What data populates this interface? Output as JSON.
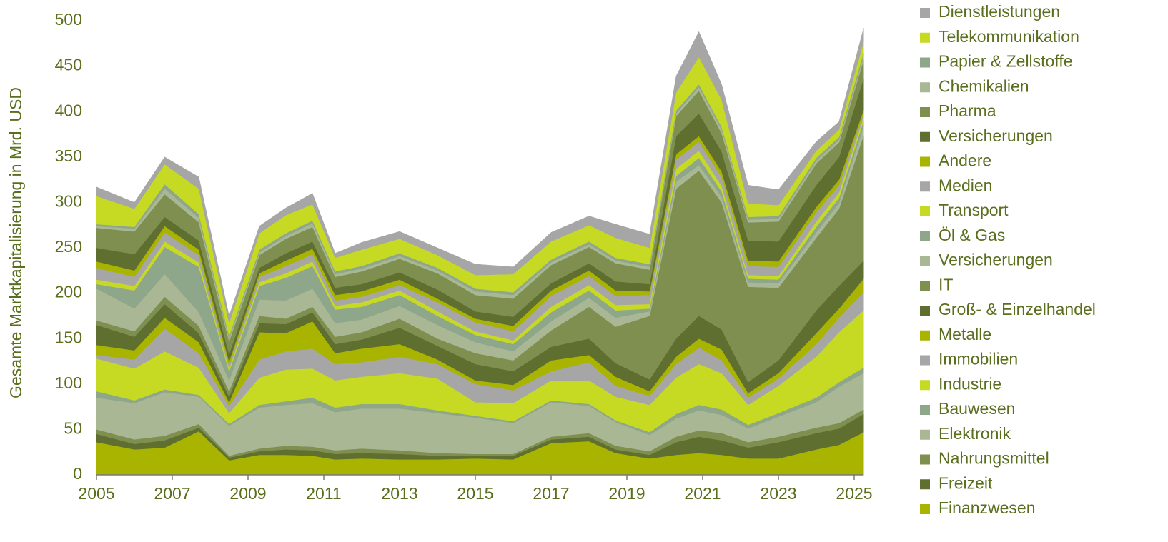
{
  "chart_data": {
    "type": "stacked-area",
    "y_label": "Gesamte Marktkapitalisierung in Mrd. USD",
    "x": [
      2005,
      2006,
      2006.8,
      2007.7,
      2008.5,
      2009.3,
      2010,
      2010.7,
      2011.3,
      2012,
      2013,
      2014,
      2015,
      2016,
      2017,
      2018,
      2018.7,
      2019.6,
      2020.3,
      2020.9,
      2021.5,
      2022.2,
      2023,
      2024,
      2024.6,
      2025.25
    ],
    "xlim": [
      2005,
      2025.25
    ],
    "xticks": [
      2005,
      2007,
      2009,
      2011,
      2013,
      2015,
      2017,
      2019,
      2021,
      2023,
      2025
    ],
    "ylim": [
      0,
      500
    ],
    "yticks": [
      0,
      50,
      100,
      150,
      200,
      250,
      300,
      350,
      400,
      450,
      500
    ],
    "series": [
      {
        "name": "Finanzwesen",
        "color": "#a8b400",
        "values": [
          36,
          28,
          30,
          48,
          16,
          22,
          22,
          21,
          17,
          18,
          17,
          17,
          18,
          17,
          35,
          37,
          24,
          18,
          22,
          24,
          22,
          18,
          18,
          28,
          33,
          47
        ]
      },
      {
        "name": "Freizeit",
        "color": "#5f6f2f",
        "values": [
          9,
          6,
          8,
          4,
          3,
          4,
          6,
          6,
          6,
          6,
          6,
          4,
          3,
          4,
          4,
          5,
          4,
          4,
          14,
          18,
          16,
          12,
          18,
          18,
          18,
          20
        ]
      },
      {
        "name": "Nahrungsmittel",
        "color": "#7f8f4f",
        "values": [
          5,
          5,
          5,
          4,
          2,
          3,
          4,
          4,
          4,
          5,
          4,
          3,
          2,
          2,
          3,
          4,
          4,
          4,
          6,
          7,
          8,
          6,
          6,
          6,
          6,
          5
        ]
      },
      {
        "name": "Elektronik",
        "color": "#a9b795",
        "values": [
          35,
          40,
          48,
          30,
          33,
          45,
          45,
          48,
          42,
          44,
          46,
          44,
          40,
          34,
          38,
          30,
          26,
          18,
          20,
          22,
          20,
          15,
          22,
          28,
          40,
          40
        ]
      },
      {
        "name": "Bauwesen",
        "color": "#8ea68a",
        "values": [
          7,
          3,
          3,
          2,
          2,
          3,
          4,
          6,
          5,
          5,
          5,
          3,
          2,
          2,
          2,
          2,
          2,
          3,
          5,
          6,
          6,
          4,
          4,
          5,
          5,
          6
        ]
      },
      {
        "name": "Industrie",
        "color": "#c6d923",
        "values": [
          36,
          35,
          42,
          30,
          12,
          30,
          35,
          32,
          30,
          30,
          34,
          35,
          15,
          20,
          22,
          26,
          26,
          30,
          40,
          45,
          40,
          22,
          30,
          45,
          55,
          63
        ]
      },
      {
        "name": "Immobilien",
        "color": "#a6a6a6",
        "values": [
          4,
          10,
          25,
          16,
          8,
          20,
          20,
          22,
          18,
          16,
          18,
          16,
          20,
          14,
          10,
          20,
          12,
          10,
          15,
          18,
          14,
          8,
          8,
          14,
          16,
          20
        ]
      },
      {
        "name": "Metalle",
        "color": "#a8b400",
        "values": [
          11,
          10,
          12,
          12,
          4,
          30,
          20,
          30,
          12,
          15,
          14,
          5,
          4,
          6,
          12,
          8,
          10,
          5,
          8,
          10,
          12,
          5,
          6,
          12,
          10,
          15
        ]
      },
      {
        "name": "Groß- & Einzelhandel",
        "color": "#5f6f2f",
        "values": [
          22,
          15,
          15,
          10,
          6,
          10,
          10,
          10,
          10,
          10,
          18,
          15,
          18,
          15,
          15,
          18,
          15,
          13,
          20,
          25,
          22,
          12,
          14,
          25,
          25,
          20
        ]
      },
      {
        "name": "IT",
        "color": "#7f8f4f",
        "values": [
          5,
          6,
          8,
          8,
          6,
          8,
          6,
          6,
          8,
          8,
          10,
          8,
          12,
          12,
          18,
          35,
          40,
          70,
          165,
          160,
          140,
          105,
          80,
          80,
          85,
          138
        ]
      },
      {
        "name": "Versicherungen",
        "color": "#a9b795",
        "values": [
          35,
          25,
          25,
          15,
          12,
          18,
          20,
          20,
          15,
          14,
          14,
          15,
          12,
          10,
          10,
          10,
          10,
          5,
          8,
          6,
          6,
          5,
          5,
          6,
          6,
          10
        ]
      },
      {
        "name": "Öl & Gas",
        "color": "#8ea68a",
        "values": [
          5,
          20,
          30,
          50,
          10,
          15,
          25,
          25,
          15,
          14,
          12,
          10,
          8,
          8,
          10,
          8,
          8,
          3,
          6,
          8,
          6,
          4,
          4,
          6,
          6,
          6
        ]
      },
      {
        "name": "Transport",
        "color": "#c6d923",
        "values": [
          5,
          5,
          6,
          5,
          3,
          4,
          5,
          5,
          4,
          5,
          5,
          5,
          4,
          4,
          6,
          6,
          6,
          5,
          8,
          8,
          6,
          4,
          4,
          6,
          6,
          4
        ]
      },
      {
        "name": "Medien",
        "color": "#a6a6a6",
        "values": [
          13,
          10,
          10,
          8,
          4,
          6,
          8,
          8,
          6,
          6,
          6,
          10,
          10,
          10,
          12,
          10,
          10,
          10,
          10,
          10,
          10,
          10,
          10,
          10,
          8,
          4
        ]
      },
      {
        "name": "Andere",
        "color": "#a8b400",
        "values": [
          7,
          7,
          7,
          6,
          4,
          4,
          6,
          6,
          6,
          6,
          6,
          4,
          4,
          6,
          6,
          6,
          6,
          4,
          6,
          6,
          6,
          6,
          6,
          6,
          6,
          4
        ]
      },
      {
        "name": "Versicherungen",
        "color": "#5f6f2f",
        "values": [
          15,
          18,
          10,
          10,
          8,
          6,
          8,
          8,
          8,
          8,
          8,
          10,
          8,
          10,
          8,
          8,
          10,
          8,
          20,
          25,
          22,
          22,
          22,
          24,
          25,
          35
        ]
      },
      {
        "name": "Pharma",
        "color": "#7f8f4f",
        "values": [
          22,
          25,
          25,
          20,
          14,
          14,
          16,
          16,
          12,
          14,
          15,
          18,
          18,
          20,
          20,
          18,
          20,
          16,
          22,
          25,
          20,
          20,
          22,
          24,
          16,
          20
        ]
      },
      {
        "name": "Chemikalien",
        "color": "#a9b795",
        "values": [
          2,
          3,
          6,
          5,
          3,
          3,
          3,
          4,
          3,
          3,
          3,
          3,
          4,
          4,
          3,
          3,
          3,
          3,
          3,
          4,
          4,
          3,
          3,
          3,
          3,
          4
        ]
      },
      {
        "name": "Papier & Zellstoffe",
        "color": "#8ea68a",
        "values": [
          2,
          2,
          5,
          4,
          3,
          3,
          3,
          3,
          3,
          3,
          3,
          3,
          3,
          3,
          3,
          3,
          3,
          3,
          3,
          3,
          3,
          3,
          3,
          3,
          3,
          4
        ]
      },
      {
        "name": "Telekommunikation",
        "color": "#c6d923",
        "values": [
          31,
          20,
          22,
          28,
          14,
          18,
          20,
          18,
          15,
          18,
          16,
          14,
          15,
          20,
          20,
          18,
          22,
          18,
          20,
          30,
          30,
          15,
          12,
          8,
          8,
          12
        ]
      },
      {
        "name": "Dienstleistungen",
        "color": "#a6a6a6",
        "values": [
          10,
          7,
          8,
          13,
          8,
          8,
          8,
          12,
          5,
          8,
          8,
          8,
          12,
          8,
          10,
          10,
          15,
          15,
          18,
          28,
          17,
          20,
          17,
          10,
          9,
          15
        ]
      }
    ]
  }
}
